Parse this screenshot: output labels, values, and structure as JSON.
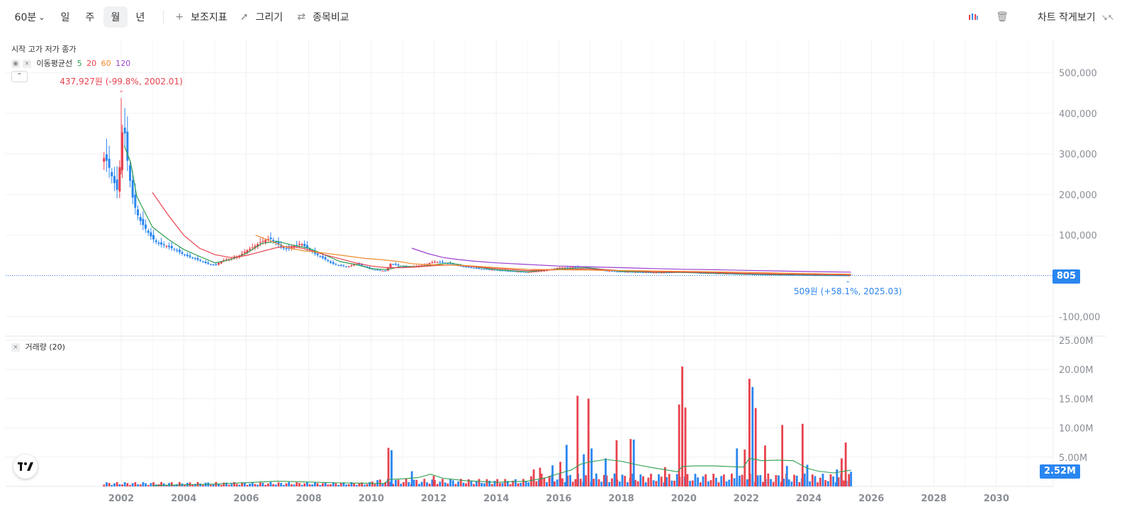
{
  "toolbar": {
    "interval": "60분",
    "periods": [
      "일",
      "주",
      "월",
      "년"
    ],
    "active_period": "월",
    "indicators": "보조지표",
    "draw": "그리기",
    "compare": "종목비교",
    "small_view": "차트 작게보기"
  },
  "legend": {
    "ohlc": "시작 고가 저가 종가",
    "ma_label": "이동평균선",
    "ma_periods": [
      "5",
      "20",
      "60",
      "120"
    ],
    "ma_colors": [
      "#2e9e4f",
      "#e8424f",
      "#f08c2a",
      "#9b3fd0"
    ],
    "volume_label": "거래량 (20)"
  },
  "annotations": {
    "high": "437,927원 (-99.8%, 2002.01)",
    "low": "509원 (+58.1%, 2025.03)"
  },
  "price_tag": "805",
  "volume_tag": "2.52M",
  "colors": {
    "up": "#e8424f",
    "down": "#2a86f0",
    "vol_ma": "#2e9e4f"
  },
  "chart_data": [
    {
      "type": "candlestick",
      "title": "",
      "ylabel": "",
      "x_range": [
        2000.9,
        2031.2
      ],
      "ylim": [
        -115000,
        590000
      ],
      "x_ticks": [
        "2002",
        "2004",
        "2006",
        "2008",
        "2010",
        "2012",
        "2014",
        "2016",
        "2018",
        "2020",
        "2022",
        "2024",
        "2026",
        "2028",
        "2030"
      ],
      "y_ticks": [
        "500,000",
        "400,000",
        "300,000",
        "200,000",
        "100,000",
        "-100,000"
      ],
      "y_tick_values": [
        500000,
        400000,
        300000,
        200000,
        100000,
        -100000
      ],
      "last_price": 805,
      "high": {
        "date": "2002.01",
        "value": 437927
      },
      "low": {
        "date": "2025.03",
        "value": 509
      },
      "close_series": {
        "x": [
          2001.5,
          2001.6,
          2001.7,
          2001.8,
          2001.9,
          2002.0,
          2002.08,
          2002.17,
          2002.25,
          2002.33,
          2002.42,
          2002.5,
          2002.58,
          2002.67,
          2002.75,
          2002.83,
          2002.92,
          2003.0,
          2003.17,
          2003.33,
          2003.5,
          2003.67,
          2003.83,
          2004.0,
          2004.25,
          2004.5,
          2004.75,
          2005.0,
          2005.25,
          2005.5,
          2005.75,
          2006.0,
          2006.25,
          2006.5,
          2006.75,
          2007.0,
          2007.25,
          2007.5,
          2007.75,
          2008.0,
          2008.25,
          2008.5,
          2008.75,
          2009.0,
          2009.25,
          2009.5,
          2009.75,
          2010.0,
          2010.25,
          2010.5,
          2010.58,
          2010.75,
          2011.0,
          2011.25,
          2011.5,
          2011.75,
          2012.0,
          2012.25,
          2012.5,
          2012.75,
          2013.0,
          2013.5,
          2014.0,
          2014.5,
          2015.0,
          2015.5,
          2016.0,
          2016.5,
          2016.9,
          2017.0,
          2017.5,
          2018.0,
          2018.5,
          2019.0,
          2019.5,
          2020.0,
          2020.5,
          2021.0,
          2021.5,
          2022.0,
          2022.5,
          2023.0,
          2023.5,
          2024.0,
          2024.5,
          2025.0,
          2025.2,
          2025.35
        ],
        "values": [
          290000,
          270000,
          245000,
          225000,
          205000,
          330000,
          385000,
          300000,
          255000,
          205000,
          175000,
          155000,
          140000,
          128000,
          120000,
          110000,
          100000,
          92000,
          80000,
          76000,
          72000,
          66000,
          60000,
          52000,
          45000,
          38000,
          30000,
          26000,
          38000,
          42000,
          48000,
          62000,
          72000,
          85000,
          92000,
          78000,
          65000,
          72000,
          80000,
          65000,
          52000,
          42000,
          30000,
          25000,
          22000,
          30000,
          24000,
          16000,
          13000,
          12000,
          30000,
          28000,
          22000,
          22000,
          25000,
          28000,
          35000,
          33000,
          30000,
          26000,
          22000,
          17000,
          14000,
          11000,
          9000,
          12000,
          20000,
          22000,
          20000,
          18000,
          12000,
          10000,
          9000,
          8000,
          8000,
          10000,
          7000,
          6000,
          5000,
          4000,
          3000,
          2500,
          2000,
          1500,
          1200,
          900,
          600,
          805
        ]
      },
      "ma_series": [
        {
          "name": "5",
          "x": [
            2002.1,
            2002.3,
            2002.5,
            2002.8,
            2003.0,
            2003.5,
            2004.0,
            2004.5,
            2005.0,
            2005.5,
            2006.0,
            2006.5,
            2007.0,
            2007.5,
            2008.0,
            2008.5,
            2009.0,
            2009.5,
            2010.0,
            2010.5,
            2011.0,
            2011.5,
            2012.0,
            2012.5,
            2013.0,
            2014.0,
            2015.0,
            2016.0,
            2016.9,
            2017.5,
            2018.0,
            2019.0,
            2020.0,
            2021.0,
            2022.0,
            2023.0,
            2024.0,
            2025.35
          ],
          "values": [
            320000,
            280000,
            195000,
            150000,
            120000,
            90000,
            65000,
            48000,
            32000,
            40000,
            55000,
            80000,
            85000,
            75000,
            68000,
            52000,
            35000,
            28000,
            18000,
            15000,
            24000,
            22000,
            27000,
            32000,
            25000,
            15000,
            10000,
            17000,
            20000,
            15000,
            11000,
            9000,
            8000,
            6500,
            4500,
            3000,
            2000,
            1000
          ]
        },
        {
          "name": "20",
          "x": [
            2003.0,
            2003.5,
            2004.0,
            2004.5,
            2005.0,
            2005.5,
            2006.0,
            2006.5,
            2007.0,
            2007.5,
            2008.0,
            2008.5,
            2009.0,
            2009.5,
            2010.0,
            2010.5,
            2011.0,
            2011.5,
            2012.0,
            2012.5,
            2013.0,
            2014.0,
            2015.0,
            2016.0,
            2016.9,
            2017.5,
            2018.0,
            2019.0,
            2020.0,
            2021.0,
            2022.0,
            2023.0,
            2024.0,
            2025.35
          ],
          "values": [
            205000,
            150000,
            100000,
            68000,
            52000,
            45000,
            50000,
            60000,
            70000,
            72000,
            64000,
            52000,
            42000,
            32000,
            24000,
            20000,
            20000,
            22000,
            25000,
            27000,
            24000,
            18000,
            13000,
            15000,
            17000,
            15000,
            13000,
            10000,
            9000,
            8000,
            6000,
            4500,
            3500,
            2200
          ]
        },
        {
          "name": "60",
          "x": [
            2006.3,
            2006.8,
            2007.3,
            2007.8,
            2008.3,
            2008.8,
            2009.3,
            2009.8,
            2010.3,
            2010.8,
            2011.3,
            2011.8,
            2012.3,
            2012.8,
            2013.3,
            2014.0,
            2015.0,
            2016.0,
            2017.0,
            2018.0,
            2019.0,
            2020.0,
            2021.0,
            2022.0,
            2023.0,
            2024.0,
            2025.35
          ],
          "values": [
            100000,
            85000,
            70000,
            62000,
            58000,
            53000,
            48000,
            43000,
            40000,
            36000,
            30000,
            27000,
            27000,
            26000,
            24000,
            20000,
            16000,
            15000,
            14000,
            13000,
            12000,
            11000,
            10000,
            8500,
            7000,
            5500,
            4000
          ]
        },
        {
          "name": "120",
          "x": [
            2011.3,
            2011.8,
            2012.3,
            2012.8,
            2013.3,
            2014.0,
            2015.0,
            2016.0,
            2017.0,
            2018.0,
            2019.0,
            2020.0,
            2021.0,
            2022.0,
            2023.0,
            2024.0,
            2025.35
          ],
          "values": [
            68000,
            55000,
            45000,
            40000,
            36000,
            32000,
            28000,
            24000,
            22000,
            20000,
            18000,
            16000,
            15000,
            13500,
            12000,
            10500,
            9000
          ]
        }
      ]
    },
    {
      "type": "bar",
      "title": "거래량 (20)",
      "ylabel": "",
      "ylim": [
        0,
        25000000
      ],
      "y_ticks": [
        "25.00M",
        "20.00M",
        "15.00M",
        "10.00M",
        "5.00M"
      ],
      "y_tick_values": [
        25000000,
        20000000,
        15000000,
        10000000,
        5000000
      ],
      "last_value": "2.52M",
      "bars": [
        {
          "x": 2010.55,
          "value": 6600000,
          "dir": "up"
        },
        {
          "x": 2010.65,
          "value": 6200000,
          "dir": "down"
        },
        {
          "x": 2011.3,
          "value": 2600000,
          "dir": "down"
        },
        {
          "x": 2012.0,
          "value": 1800000,
          "dir": "up"
        },
        {
          "x": 2015.2,
          "value": 2900000,
          "dir": "up"
        },
        {
          "x": 2015.4,
          "value": 3200000,
          "dir": "up"
        },
        {
          "x": 2015.8,
          "value": 3600000,
          "dir": "down"
        },
        {
          "x": 2016.05,
          "value": 4200000,
          "dir": "up"
        },
        {
          "x": 2016.25,
          "value": 7100000,
          "dir": "down"
        },
        {
          "x": 2016.6,
          "value": 15500000,
          "dir": "up"
        },
        {
          "x": 2016.8,
          "value": 5500000,
          "dir": "down"
        },
        {
          "x": 2016.95,
          "value": 15000000,
          "dir": "up"
        },
        {
          "x": 2017.05,
          "value": 6500000,
          "dir": "down"
        },
        {
          "x": 2017.5,
          "value": 4800000,
          "dir": "down"
        },
        {
          "x": 2017.85,
          "value": 7900000,
          "dir": "up"
        },
        {
          "x": 2018.3,
          "value": 8100000,
          "dir": "up"
        },
        {
          "x": 2018.4,
          "value": 8000000,
          "dir": "down"
        },
        {
          "x": 2019.4,
          "value": 3300000,
          "dir": "up"
        },
        {
          "x": 2019.85,
          "value": 14000000,
          "dir": "up"
        },
        {
          "x": 2019.95,
          "value": 20500000,
          "dir": "up"
        },
        {
          "x": 2020.05,
          "value": 13500000,
          "dir": "up"
        },
        {
          "x": 2021.7,
          "value": 6500000,
          "dir": "down"
        },
        {
          "x": 2021.95,
          "value": 6300000,
          "dir": "up"
        },
        {
          "x": 2022.1,
          "value": 18400000,
          "dir": "up"
        },
        {
          "x": 2022.2,
          "value": 17000000,
          "dir": "down"
        },
        {
          "x": 2022.3,
          "value": 13400000,
          "dir": "up"
        },
        {
          "x": 2022.6,
          "value": 7000000,
          "dir": "up"
        },
        {
          "x": 2023.15,
          "value": 10500000,
          "dir": "up"
        },
        {
          "x": 2023.3,
          "value": 3500000,
          "dir": "down"
        },
        {
          "x": 2023.8,
          "value": 10700000,
          "dir": "up"
        },
        {
          "x": 2023.95,
          "value": 3700000,
          "dir": "down"
        },
        {
          "x": 2024.9,
          "value": 2900000,
          "dir": "down"
        },
        {
          "x": 2025.05,
          "value": 4800000,
          "dir": "up"
        },
        {
          "x": 2025.18,
          "value": 7500000,
          "dir": "up"
        },
        {
          "x": 2025.35,
          "value": 2520000,
          "dir": "down"
        }
      ],
      "ma20": {
        "x": [
          2003.0,
          2005.0,
          2007.0,
          2009.0,
          2010.4,
          2010.6,
          2011.0,
          2011.5,
          2011.9,
          2012.3,
          2013.0,
          2014.0,
          2015.0,
          2015.6,
          2016.0,
          2016.4,
          2016.7,
          2017.0,
          2017.5,
          2018.0,
          2018.5,
          2019.0,
          2019.8,
          2019.95,
          2020.3,
          2021.0,
          2021.9,
          2022.1,
          2022.5,
          2023.0,
          2023.5,
          2023.95,
          2024.3,
          2024.8,
          2025.35
        ],
        "values": [
          150000,
          400000,
          900000,
          600000,
          500000,
          1200000,
          1300000,
          1500000,
          2100000,
          1400000,
          1000000,
          700000,
          900000,
          1500000,
          2200000,
          2800000,
          3800000,
          4200000,
          4600000,
          4300000,
          3700000,
          3200000,
          2500000,
          3400000,
          3500000,
          3500000,
          3300000,
          4800000,
          4400000,
          4500000,
          4400000,
          3100000,
          2600000,
          2300000,
          2800000
        ]
      }
    }
  ]
}
